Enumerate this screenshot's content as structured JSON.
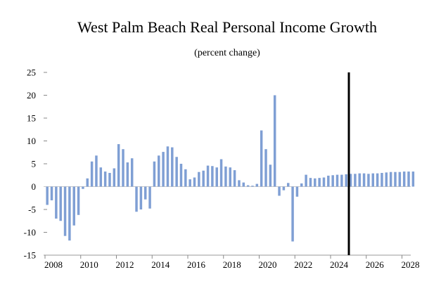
{
  "chart_data": {
    "type": "bar",
    "title": "West Palm Beach Real Personal Income Growth",
    "subtitle": "(percent change)",
    "xlabel": "",
    "ylabel": "",
    "ylim": [
      -15,
      25
    ],
    "yticks": [
      -15,
      -10,
      -5,
      0,
      5,
      10,
      15,
      20,
      25
    ],
    "ytick_labels": [
      "-15",
      "-10",
      "-5",
      "0",
      "5",
      "10",
      "15",
      "20",
      "25"
    ],
    "xlim": [
      2008,
      2028.5
    ],
    "xticks": [
      2008,
      2010,
      2012,
      2014,
      2016,
      2018,
      2020,
      2022,
      2024,
      2026,
      2028
    ],
    "xtick_labels": [
      "2008",
      "2010",
      "2012",
      "2014",
      "2016",
      "2018",
      "2020",
      "2022",
      "2024",
      "2026",
      "2028"
    ],
    "bar_color": "#7f9fd4",
    "vertical_marker": {
      "x": 2025.0,
      "color": "#000000"
    },
    "frequency": "quarterly",
    "start_quarter": "2008Q1",
    "values": [
      -4.0,
      -3.0,
      -7.0,
      -7.5,
      -10.8,
      -11.8,
      -8.5,
      -6.2,
      -0.5,
      1.8,
      5.5,
      6.8,
      4.2,
      3.3,
      3.0,
      4.0,
      9.3,
      8.2,
      5.3,
      6.2,
      -5.5,
      -5.0,
      -2.8,
      -4.8,
      5.5,
      6.8,
      7.6,
      8.8,
      8.6,
      6.5,
      5.0,
      3.8,
      1.6,
      2.0,
      3.2,
      3.5,
      4.6,
      4.5,
      4.2,
      6.0,
      4.4,
      4.2,
      3.6,
      1.4,
      0.9,
      0.3,
      0.2,
      0.6,
      12.3,
      8.2,
      4.8,
      20.0,
      -2.0,
      -0.8,
      0.8,
      -12.0,
      -2.2,
      0.7,
      2.6,
      1.9,
      1.8,
      1.9,
      2.0,
      2.4,
      2.5,
      2.6,
      2.6,
      2.7,
      2.8,
      2.8,
      2.9,
      2.9,
      2.8,
      2.9,
      2.9,
      3.0,
      3.1,
      3.2,
      3.2,
      3.2,
      3.3,
      3.3,
      3.3
    ]
  }
}
